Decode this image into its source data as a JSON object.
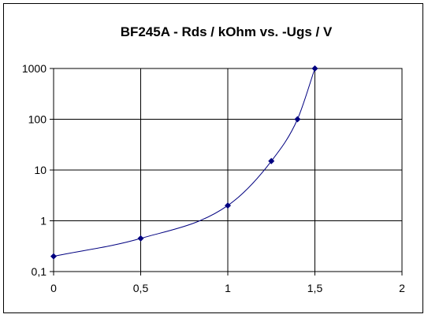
{
  "chart_data": {
    "type": "line",
    "title": "BF245A - Rds / kOhm vs. -Ugs / V",
    "xlabel": "",
    "ylabel": "",
    "y_scale": "log",
    "xlim": [
      0,
      2
    ],
    "ylim": [
      0.1,
      1000
    ],
    "grid": true,
    "legend": "none",
    "x_tick_labels": [
      "0",
      "0,5",
      "1",
      "1,5",
      "2"
    ],
    "x_tick_values": [
      0,
      0.5,
      1,
      1.5,
      2
    ],
    "y_tick_labels": [
      "0,1",
      "1",
      "10",
      "100",
      "1000"
    ],
    "y_tick_values": [
      0.1,
      1,
      10,
      100,
      1000
    ],
    "series": [
      {
        "x": [
          0,
          0.5,
          1,
          1.25,
          1.4,
          1.5
        ],
        "y": [
          0.2,
          0.45,
          2,
          15,
          100,
          1000
        ],
        "color": "#000080"
      }
    ]
  }
}
